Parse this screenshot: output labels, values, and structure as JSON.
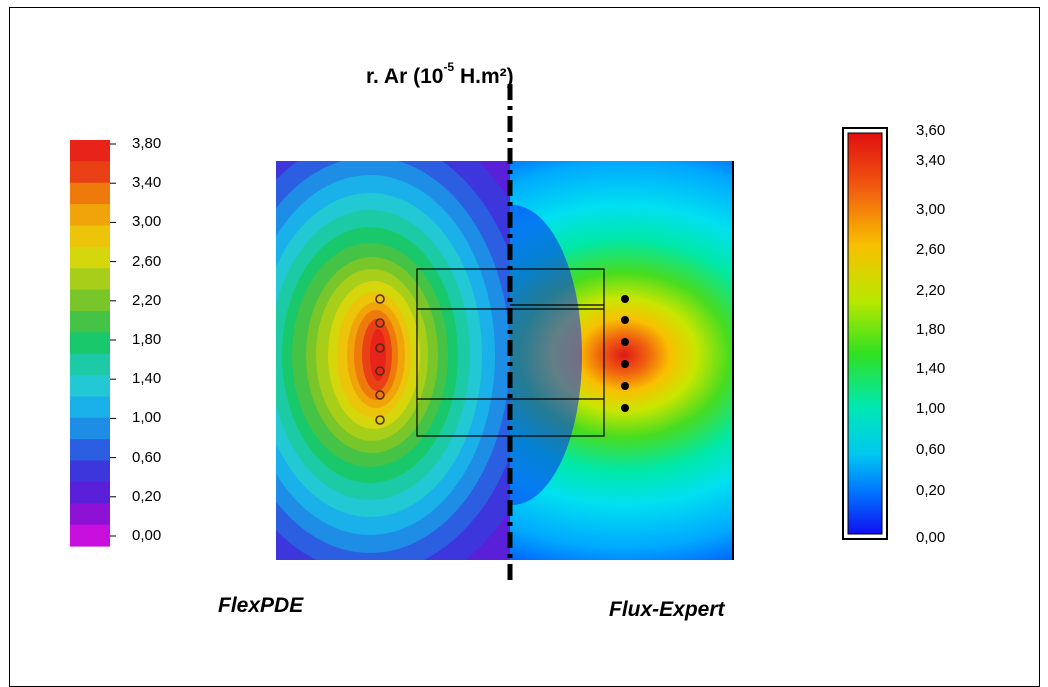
{
  "title": {
    "prefix": "r. Ar (10",
    "exponent": "-5",
    "suffix": " H.m²)"
  },
  "left_panel": {
    "caption": "FlexPDE",
    "legend_labels": [
      "3,80",
      "3,40",
      "3,00",
      "2,60",
      "2,20",
      "1,80",
      "1,40",
      "1,00",
      "0,60",
      "0,20",
      "0,00"
    ],
    "legend_colors": [
      "#e8231a",
      "#ea4015",
      "#ee7a0c",
      "#f0a40a",
      "#ecc409",
      "#d6d60c",
      "#a7cf1a",
      "#78c62a",
      "#44c347",
      "#18c86b",
      "#1ccba6",
      "#22c8d4",
      "#1ab0ea",
      "#1e8de6",
      "#2b5ee0",
      "#3c36dc",
      "#5a1fd9",
      "#8e12d6",
      "#c90fde"
    ]
  },
  "right_panel": {
    "caption": "Flux-Expert",
    "legend_labels": [
      "3,60",
      "3,40",
      "3,00",
      "2,60",
      "2,20",
      "1,80",
      "1,40",
      "1,00",
      "0,60",
      "0,20",
      "0,00"
    ]
  }
}
